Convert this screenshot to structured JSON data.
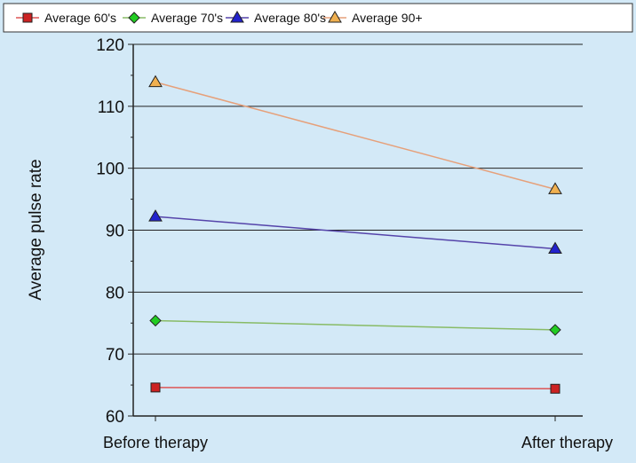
{
  "chart_data": {
    "type": "line",
    "categories": [
      "Before therapy",
      "After therapy"
    ],
    "ylabel": "Average pulse rate",
    "ylim": [
      60,
      120
    ],
    "yticks": [
      60,
      70,
      80,
      90,
      100,
      110,
      120
    ],
    "grid": true,
    "legend_position": "top",
    "series": [
      {
        "name": "Average 60's",
        "values": [
          64.6,
          64.4
        ],
        "color": "#cc2222",
        "line_color": "#dd5555",
        "marker": "square"
      },
      {
        "name": "Average 70's",
        "values": [
          75.4,
          73.9
        ],
        "color": "#22cc22",
        "line_color": "#88bb66",
        "marker": "diamond"
      },
      {
        "name": "Average 80's",
        "values": [
          92.2,
          87.0
        ],
        "color": "#2222cc",
        "line_color": "#5544aa",
        "marker": "triangle"
      },
      {
        "name": "Average 90+",
        "values": [
          113.9,
          96.6
        ],
        "color": "#f0b050",
        "line_color": "#e6a07a",
        "marker": "triangle"
      }
    ]
  }
}
